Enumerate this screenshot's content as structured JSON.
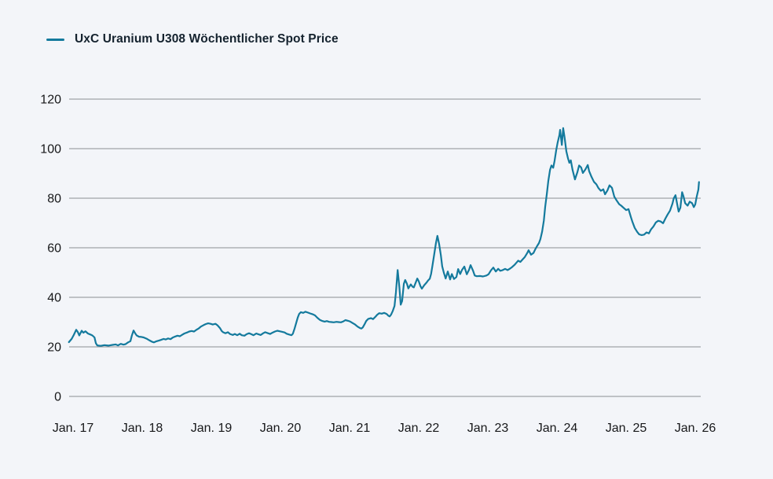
{
  "page": {
    "background": "#f3f5f9"
  },
  "legend": {
    "label": "UxC Uranium U308 Wöchentlicher Spot Price",
    "swatch_color": "#147a9d"
  },
  "chart_data": {
    "type": "line",
    "title": "",
    "xlabel": "",
    "ylabel": "",
    "legend_position": "top-left",
    "grid": "horizontal-only",
    "gridline_color": "#8b8e93",
    "text_color": "#17181a",
    "line_color": "#147a9d",
    "x_ticks": [
      "Jan. 17",
      "Jan. 18",
      "Jan. 19",
      "Jan. 20",
      "Jan. 21",
      "Jan. 22",
      "Jan. 23",
      "Jan. 24",
      "Jan. 25",
      "Jan. 26"
    ],
    "y_ticks": [
      0,
      20,
      40,
      60,
      80,
      100,
      120
    ],
    "ylim": [
      0,
      120
    ],
    "x_unit": "years since Jan 2017",
    "y_unit": "USD/lb U3O8",
    "series": [
      {
        "name": "UxC Uranium U308 Wöchentlicher Spot Price",
        "points": [
          [
            -0.06,
            21.9
          ],
          [
            -0.02,
            23.2
          ],
          [
            0.01,
            24.8
          ],
          [
            0.045,
            26.9
          ],
          [
            0.07,
            25.9
          ],
          [
            0.09,
            24.6
          ],
          [
            0.125,
            26.5
          ],
          [
            0.15,
            25.7
          ],
          [
            0.18,
            26.3
          ],
          [
            0.215,
            25.4
          ],
          [
            0.25,
            25.0
          ],
          [
            0.28,
            24.6
          ],
          [
            0.31,
            23.8
          ],
          [
            0.33,
            21.5
          ],
          [
            0.35,
            20.6
          ],
          [
            0.4,
            20.4
          ],
          [
            0.455,
            20.7
          ],
          [
            0.51,
            20.5
          ],
          [
            0.57,
            20.8
          ],
          [
            0.615,
            21.0
          ],
          [
            0.65,
            20.6
          ],
          [
            0.69,
            21.2
          ],
          [
            0.73,
            20.9
          ],
          [
            0.76,
            21.1
          ],
          [
            0.795,
            21.8
          ],
          [
            0.83,
            22.3
          ],
          [
            0.85,
            24.5
          ],
          [
            0.875,
            26.6
          ],
          [
            0.9,
            25.4
          ],
          [
            0.92,
            24.6
          ],
          [
            0.955,
            24.1
          ],
          [
            0.99,
            24.0
          ],
          [
            1.02,
            23.8
          ],
          [
            1.07,
            23.2
          ],
          [
            1.1,
            22.7
          ],
          [
            1.14,
            22.1
          ],
          [
            1.17,
            21.8
          ],
          [
            1.2,
            22.2
          ],
          [
            1.24,
            22.5
          ],
          [
            1.27,
            22.8
          ],
          [
            1.31,
            23.2
          ],
          [
            1.34,
            23.0
          ],
          [
            1.375,
            23.4
          ],
          [
            1.41,
            23.1
          ],
          [
            1.44,
            23.7
          ],
          [
            1.48,
            24.2
          ],
          [
            1.51,
            24.5
          ],
          [
            1.545,
            24.3
          ],
          [
            1.58,
            24.9
          ],
          [
            1.61,
            25.4
          ],
          [
            1.65,
            25.8
          ],
          [
            1.68,
            26.2
          ],
          [
            1.715,
            26.4
          ],
          [
            1.75,
            26.2
          ],
          [
            1.78,
            26.8
          ],
          [
            1.82,
            27.5
          ],
          [
            1.85,
            28.2
          ],
          [
            1.89,
            28.8
          ],
          [
            1.92,
            29.2
          ],
          [
            1.955,
            29.5
          ],
          [
            1.99,
            29.3
          ],
          [
            2.02,
            29.0
          ],
          [
            2.06,
            29.3
          ],
          [
            2.09,
            28.7
          ],
          [
            2.125,
            27.6
          ],
          [
            2.15,
            26.4
          ],
          [
            2.17,
            25.9
          ],
          [
            2.205,
            25.5
          ],
          [
            2.24,
            25.9
          ],
          [
            2.27,
            25.2
          ],
          [
            2.31,
            24.8
          ],
          [
            2.34,
            25.2
          ],
          [
            2.375,
            24.7
          ],
          [
            2.41,
            25.3
          ],
          [
            2.44,
            24.7
          ],
          [
            2.48,
            24.5
          ],
          [
            2.51,
            25.1
          ],
          [
            2.545,
            25.5
          ],
          [
            2.58,
            25.1
          ],
          [
            2.61,
            24.7
          ],
          [
            2.65,
            25.4
          ],
          [
            2.68,
            25.1
          ],
          [
            2.715,
            24.8
          ],
          [
            2.75,
            25.5
          ],
          [
            2.78,
            25.9
          ],
          [
            2.82,
            25.5
          ],
          [
            2.85,
            25.2
          ],
          [
            2.89,
            25.8
          ],
          [
            2.92,
            26.2
          ],
          [
            2.955,
            26.5
          ],
          [
            2.99,
            26.3
          ],
          [
            3.02,
            26.1
          ],
          [
            3.06,
            25.8
          ],
          [
            3.09,
            25.3
          ],
          [
            3.125,
            25.0
          ],
          [
            3.16,
            24.7
          ],
          [
            3.18,
            25.3
          ],
          [
            3.205,
            27.4
          ],
          [
            3.23,
            29.8
          ],
          [
            3.25,
            31.8
          ],
          [
            3.27,
            33.3
          ],
          [
            3.295,
            34.0
          ],
          [
            3.33,
            33.7
          ],
          [
            3.36,
            34.2
          ],
          [
            3.4,
            33.8
          ],
          [
            3.43,
            33.5
          ],
          [
            3.47,
            33.1
          ],
          [
            3.5,
            32.7
          ],
          [
            3.535,
            31.7
          ],
          [
            3.57,
            30.9
          ],
          [
            3.6,
            30.5
          ],
          [
            3.64,
            30.2
          ],
          [
            3.67,
            30.4
          ],
          [
            3.705,
            30.1
          ],
          [
            3.74,
            30.0
          ],
          [
            3.77,
            29.9
          ],
          [
            3.81,
            30.1
          ],
          [
            3.84,
            30.0
          ],
          [
            3.875,
            29.9
          ],
          [
            3.91,
            30.3
          ],
          [
            3.94,
            30.8
          ],
          [
            3.98,
            30.5
          ],
          [
            4.01,
            30.2
          ],
          [
            4.045,
            29.6
          ],
          [
            4.08,
            29.0
          ],
          [
            4.115,
            28.2
          ],
          [
            4.15,
            27.6
          ],
          [
            4.17,
            27.4
          ],
          [
            4.19,
            27.8
          ],
          [
            4.215,
            29.0
          ],
          [
            4.24,
            30.4
          ],
          [
            4.27,
            31.3
          ],
          [
            4.31,
            31.6
          ],
          [
            4.34,
            31.2
          ],
          [
            4.375,
            32.2
          ],
          [
            4.4,
            33.0
          ],
          [
            4.43,
            33.6
          ],
          [
            4.465,
            33.4
          ],
          [
            4.5,
            33.7
          ],
          [
            4.535,
            33.3
          ],
          [
            4.56,
            32.6
          ],
          [
            4.58,
            32.3
          ],
          [
            4.6,
            33.0
          ],
          [
            4.625,
            34.5
          ],
          [
            4.65,
            36.5
          ],
          [
            4.67,
            42.0
          ],
          [
            4.695,
            51.0
          ],
          [
            4.72,
            44.0
          ],
          [
            4.74,
            37.0
          ],
          [
            4.76,
            38.5
          ],
          [
            4.785,
            45.5
          ],
          [
            4.805,
            47.0
          ],
          [
            4.83,
            45.5
          ],
          [
            4.85,
            43.6
          ],
          [
            4.885,
            45.2
          ],
          [
            4.91,
            44.3
          ],
          [
            4.93,
            44.0
          ],
          [
            4.955,
            45.8
          ],
          [
            4.98,
            47.6
          ],
          [
            5.0,
            46.5
          ],
          [
            5.025,
            44.5
          ],
          [
            5.045,
            43.5
          ],
          [
            5.08,
            44.9
          ],
          [
            5.115,
            46.0
          ],
          [
            5.135,
            46.8
          ],
          [
            5.16,
            47.5
          ],
          [
            5.18,
            49.5
          ],
          [
            5.2,
            53.0
          ],
          [
            5.225,
            57.5
          ],
          [
            5.25,
            62.0
          ],
          [
            5.27,
            64.8
          ],
          [
            5.295,
            61.5
          ],
          [
            5.32,
            57.0
          ],
          [
            5.34,
            52.5
          ],
          [
            5.365,
            49.8
          ],
          [
            5.39,
            47.6
          ],
          [
            5.42,
            50.4
          ],
          [
            5.455,
            47.2
          ],
          [
            5.48,
            49.4
          ],
          [
            5.51,
            47.4
          ],
          [
            5.545,
            48.2
          ],
          [
            5.57,
            51.4
          ],
          [
            5.6,
            49.4
          ],
          [
            5.625,
            51.0
          ],
          [
            5.66,
            52.4
          ],
          [
            5.695,
            49.3
          ],
          [
            5.73,
            51.2
          ],
          [
            5.75,
            53.0
          ],
          [
            5.785,
            50.8
          ],
          [
            5.81,
            48.8
          ],
          [
            5.84,
            48.5
          ],
          [
            5.89,
            48.6
          ],
          [
            5.93,
            48.4
          ],
          [
            5.98,
            48.8
          ],
          [
            6.01,
            49.3
          ],
          [
            6.045,
            50.9
          ],
          [
            6.08,
            52.0
          ],
          [
            6.115,
            50.4
          ],
          [
            6.15,
            51.5
          ],
          [
            6.18,
            50.7
          ],
          [
            6.215,
            51.0
          ],
          [
            6.25,
            51.5
          ],
          [
            6.285,
            51.0
          ],
          [
            6.32,
            51.6
          ],
          [
            6.35,
            52.2
          ],
          [
            6.39,
            53.2
          ],
          [
            6.42,
            54.2
          ],
          [
            6.44,
            54.8
          ],
          [
            6.47,
            54.3
          ],
          [
            6.5,
            55.2
          ],
          [
            6.535,
            56.3
          ],
          [
            6.57,
            57.9
          ],
          [
            6.59,
            59.0
          ],
          [
            6.625,
            57.2
          ],
          [
            6.66,
            57.9
          ],
          [
            6.69,
            59.6
          ],
          [
            6.715,
            60.8
          ],
          [
            6.74,
            61.9
          ],
          [
            6.76,
            63.5
          ],
          [
            6.785,
            66.5
          ],
          [
            6.81,
            71.0
          ],
          [
            6.83,
            76.5
          ],
          [
            6.855,
            82.0
          ],
          [
            6.875,
            87.0
          ],
          [
            6.9,
            91.5
          ],
          [
            6.92,
            93.2
          ],
          [
            6.945,
            92.3
          ],
          [
            6.965,
            95.0
          ],
          [
            6.99,
            99.5
          ],
          [
            7.01,
            102.5
          ],
          [
            7.035,
            105.5
          ],
          [
            7.045,
            107.6
          ],
          [
            7.07,
            101.5
          ],
          [
            7.09,
            108.3
          ],
          [
            7.11,
            104.5
          ],
          [
            7.135,
            99.0
          ],
          [
            7.16,
            96.0
          ],
          [
            7.18,
            94.3
          ],
          [
            7.2,
            95.3
          ],
          [
            7.225,
            91.5
          ],
          [
            7.26,
            87.6
          ],
          [
            7.295,
            90.5
          ],
          [
            7.32,
            93.2
          ],
          [
            7.35,
            92.4
          ],
          [
            7.375,
            90.2
          ],
          [
            7.41,
            91.6
          ],
          [
            7.445,
            93.4
          ],
          [
            7.465,
            91.0
          ],
          [
            7.5,
            88.6
          ],
          [
            7.535,
            86.6
          ],
          [
            7.57,
            85.6
          ],
          [
            7.6,
            84.1
          ],
          [
            7.635,
            83.0
          ],
          [
            7.67,
            83.6
          ],
          [
            7.695,
            81.6
          ],
          [
            7.73,
            83.1
          ],
          [
            7.76,
            85.2
          ],
          [
            7.795,
            84.2
          ],
          [
            7.83,
            80.6
          ],
          [
            7.86,
            79.2
          ],
          [
            7.9,
            77.6
          ],
          [
            7.93,
            77.0
          ],
          [
            7.965,
            76.1
          ],
          [
            8.0,
            75.2
          ],
          [
            8.035,
            75.6
          ],
          [
            8.07,
            72.3
          ],
          [
            8.09,
            70.6
          ],
          [
            8.125,
            68.0
          ],
          [
            8.16,
            66.4
          ],
          [
            8.19,
            65.4
          ],
          [
            8.225,
            65.1
          ],
          [
            8.26,
            65.3
          ],
          [
            8.295,
            66.2
          ],
          [
            8.33,
            65.8
          ],
          [
            8.36,
            67.4
          ],
          [
            8.395,
            68.6
          ],
          [
            8.43,
            70.2
          ],
          [
            8.465,
            70.9
          ],
          [
            8.5,
            70.6
          ],
          [
            8.535,
            69.9
          ],
          [
            8.57,
            71.9
          ],
          [
            8.6,
            73.4
          ],
          [
            8.635,
            75.0
          ],
          [
            8.67,
            77.8
          ],
          [
            8.69,
            80.0
          ],
          [
            8.715,
            81.2
          ],
          [
            8.74,
            77.5
          ],
          [
            8.76,
            74.6
          ],
          [
            8.785,
            76.2
          ],
          [
            8.81,
            82.4
          ],
          [
            8.83,
            80.8
          ],
          [
            8.855,
            78.0
          ],
          [
            8.89,
            77.0
          ],
          [
            8.92,
            78.6
          ],
          [
            8.955,
            78.0
          ],
          [
            8.98,
            76.4
          ],
          [
            9.0,
            77.5
          ],
          [
            9.02,
            80.5
          ],
          [
            9.045,
            83.5
          ],
          [
            9.055,
            86.5
          ]
        ]
      }
    ]
  }
}
